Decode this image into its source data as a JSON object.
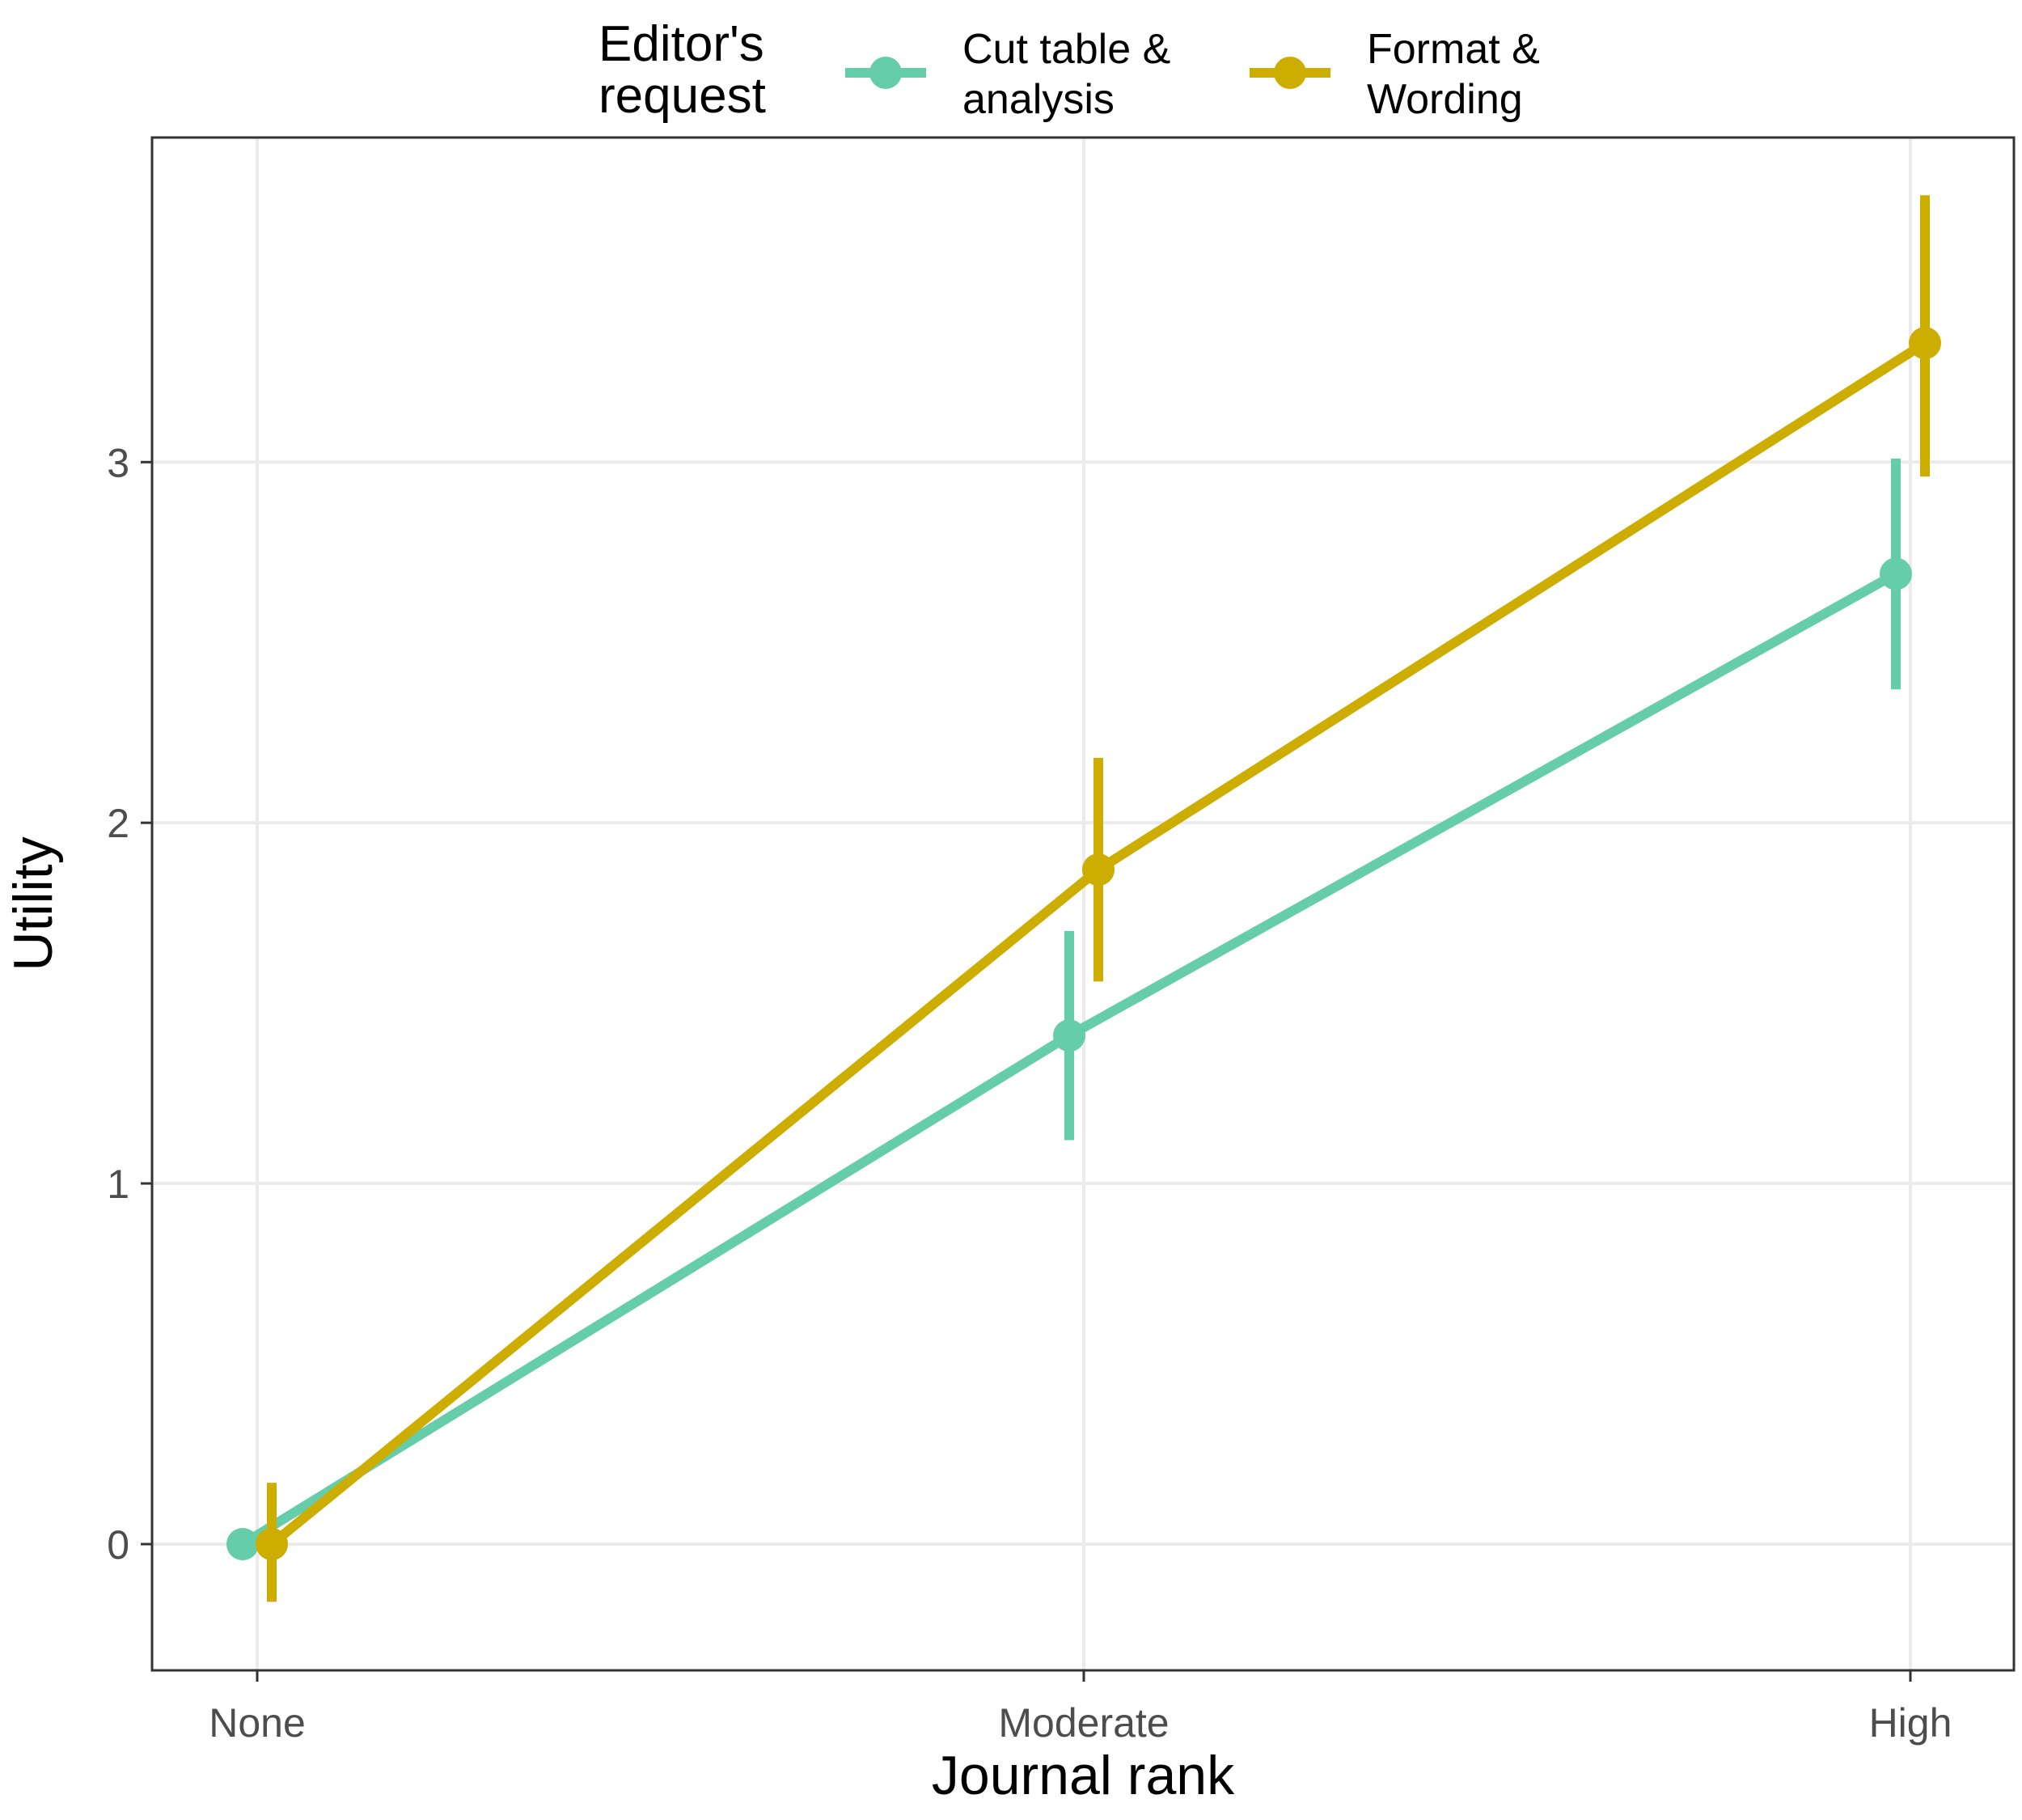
{
  "chart_data": {
    "type": "line",
    "xlabel": "Journal rank",
    "ylabel": "Utility",
    "categories": [
      "None",
      "Moderate",
      "High"
    ],
    "ylim": [
      -0.35,
      3.9
    ],
    "yticks": [
      0,
      1,
      2,
      3
    ],
    "grid": true,
    "legend": {
      "title_lines": [
        "Editor's",
        "request"
      ],
      "placement": "top"
    },
    "series": [
      {
        "name_lines": [
          "Cut table &",
          "analysis"
        ],
        "color": "#66CDAA",
        "values": [
          0.0,
          1.41,
          2.69
        ],
        "lower": [
          null,
          1.12,
          2.37
        ],
        "upper": [
          null,
          1.7,
          3.01
        ]
      },
      {
        "name_lines": [
          "Format &",
          "Wording"
        ],
        "color": "#CDAD00",
        "values": [
          0.0,
          1.87,
          3.33
        ],
        "lower": [
          -0.16,
          1.56,
          2.96
        ],
        "upper": [
          0.17,
          2.18,
          3.74
        ]
      }
    ]
  }
}
